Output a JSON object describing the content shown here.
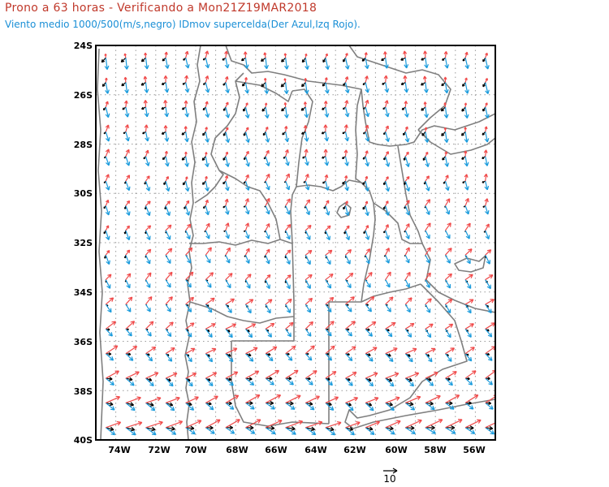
{
  "title": "Prono a 63 horas - Verificando a Mon21Z19MAR2018",
  "subtitle": "Viento medio 1000/500(m/s,negro) IDmov supercelda(Der Azul,Izq Rojo).",
  "map": {
    "lon_range": [
      -75,
      -55
    ],
    "lat_range": [
      -40,
      -24
    ],
    "x_ticks": [
      "74W",
      "72W",
      "70W",
      "68W",
      "66W",
      "64W",
      "62W",
      "60W",
      "58W",
      "56W"
    ],
    "y_ticks": [
      "24S",
      "26S",
      "28S",
      "30S",
      "32S",
      "34S",
      "36S",
      "38S",
      "40S"
    ],
    "reference_vector_label": "10",
    "colors": {
      "mean_wind": "#000000",
      "id_right": "#1a9bdc",
      "id_left": "#f04a4a",
      "borders": "#7f7f7f",
      "grid": "#9a9a9a"
    }
  }
}
